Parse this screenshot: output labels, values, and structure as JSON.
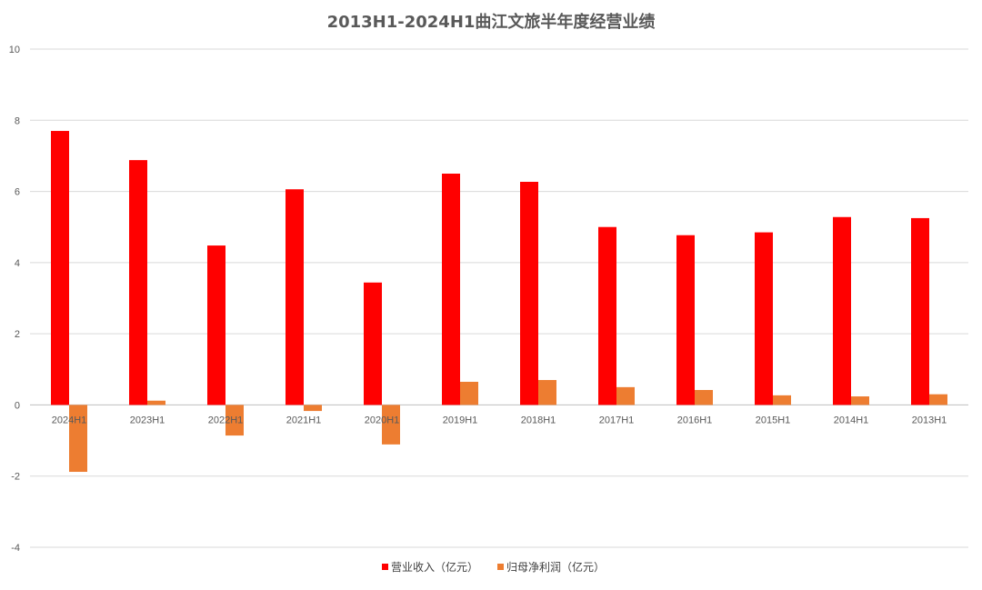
{
  "chart_data": {
    "type": "bar",
    "title": "2013H1-2024H1曲江文旅半年度经营业绩",
    "categories": [
      "2024H1",
      "2023H1",
      "2022H1",
      "2021H1",
      "2020H1",
      "2019H1",
      "2018H1",
      "2017H1",
      "2016H1",
      "2015H1",
      "2014H1",
      "2013H1"
    ],
    "series": [
      {
        "name": "营业收入（亿元）",
        "color": "#ff0000",
        "values": [
          7.7,
          6.88,
          4.48,
          6.06,
          3.44,
          6.5,
          6.27,
          5.0,
          4.77,
          4.85,
          5.28,
          5.25
        ]
      },
      {
        "name": "归母净利润（亿元）",
        "color": "#ed7d31",
        "values": [
          -1.88,
          0.12,
          -0.86,
          -0.17,
          -1.11,
          0.65,
          0.7,
          0.5,
          0.42,
          0.27,
          0.24,
          0.3
        ]
      }
    ],
    "ylim": [
      -4,
      10
    ],
    "yticks": [
      -4,
      -2,
      0,
      2,
      4,
      6,
      8,
      10
    ],
    "grid": true,
    "legend_position": "bottom"
  }
}
